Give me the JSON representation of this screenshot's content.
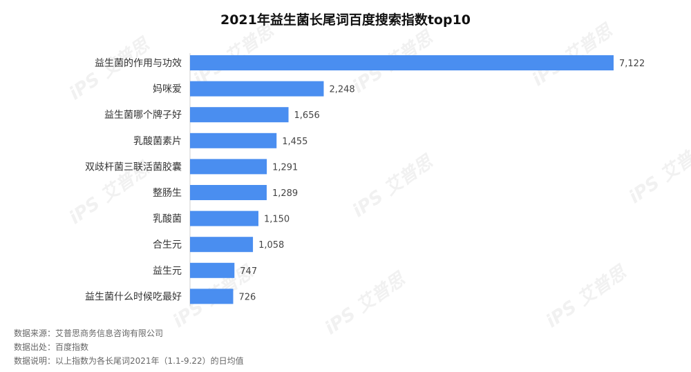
{
  "chart_data": {
    "type": "bar",
    "orientation": "horizontal",
    "title": "2021年益生菌长尾词百度搜索指数top10",
    "categories": [
      "益生菌的作用与功效",
      "妈咪爱",
      "益生菌哪个牌子好",
      "乳酸菌素片",
      "双歧杆菌三联活菌胶囊",
      "整肠生",
      "乳酸菌",
      "合生元",
      "益生元",
      "益生菌什么时候吃最好"
    ],
    "values": [
      7122,
      2248,
      1656,
      1455,
      1291,
      1289,
      1150,
      1058,
      747,
      726
    ],
    "value_labels": [
      "7,122",
      "2,248",
      "1,656",
      "1,455",
      "1,291",
      "1,289",
      "1,150",
      "1,058",
      "747",
      "726"
    ],
    "bar_color": "#4a8ef0",
    "xlim": [
      0,
      7122
    ],
    "grid": false,
    "legend": "none"
  },
  "footnotes": {
    "source": "数据来源：艾普思商务信息咨询有限公司",
    "origin": "数据出处：百度指数",
    "remark": "数据说明：以上指数为各长尾词2021年（1.1-9.22）的日均值"
  },
  "watermark": {
    "text": "iPS 艾普思"
  }
}
